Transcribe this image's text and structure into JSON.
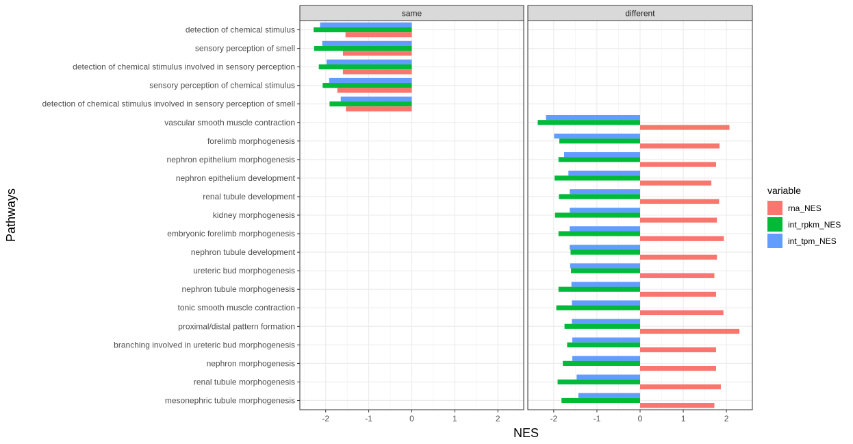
{
  "chart_data": {
    "type": "bar",
    "orientation": "horizontal",
    "xlabel": "NES",
    "ylabel": "Pathways",
    "xlim": [
      -2.6,
      2.6
    ],
    "x_ticks": [
      -2,
      -1,
      0,
      1,
      2
    ],
    "grid": true,
    "legend_title": "variable",
    "legend_position": "right",
    "series": [
      {
        "name": "rna_NES",
        "color": "#F8766D"
      },
      {
        "name": "int_rpkm_NES",
        "color": "#00BA38"
      },
      {
        "name": "int_tpm_NES",
        "color": "#619CFF"
      }
    ],
    "categories": [
      "detection of chemical stimulus",
      "sensory perception of smell",
      "detection of chemical stimulus involved in sensory perception",
      "sensory perception of chemical stimulus",
      "detection of chemical stimulus involved in sensory perception of smell",
      "vascular smooth muscle contraction",
      "forelimb morphogenesis",
      "nephron epithelium morphogenesis",
      "nephron epithelium development",
      "renal tubule development",
      "kidney morphogenesis",
      "embryonic forelimb morphogenesis",
      "nephron tubule development",
      "ureteric bud morphogenesis",
      "nephron tubule morphogenesis",
      "tonic smooth muscle contraction",
      "proximal/distal pattern formation",
      "branching involved in ureteric bud morphogenesis",
      "nephron morphogenesis",
      "renal tubule morphogenesis",
      "mesonephric tubule morphogenesis"
    ],
    "panels": [
      {
        "label": "same",
        "bars": [
          {
            "category": 0,
            "rna_NES": -1.54,
            "int_rpkm_NES": -2.28,
            "int_tpm_NES": -2.13
          },
          {
            "category": 1,
            "rna_NES": -1.6,
            "int_rpkm_NES": -2.27,
            "int_tpm_NES": -2.08
          },
          {
            "category": 2,
            "rna_NES": -1.6,
            "int_rpkm_NES": -2.16,
            "int_tpm_NES": -1.98
          },
          {
            "category": 3,
            "rna_NES": -1.73,
            "int_rpkm_NES": -2.07,
            "int_tpm_NES": -1.92
          },
          {
            "category": 4,
            "rna_NES": -1.53,
            "int_rpkm_NES": -1.91,
            "int_tpm_NES": -1.65
          }
        ]
      },
      {
        "label": "different",
        "bars": [
          {
            "category": 5,
            "rna_NES": 2.07,
            "int_rpkm_NES": -2.37,
            "int_tpm_NES": -2.18
          },
          {
            "category": 6,
            "rna_NES": 1.84,
            "int_rpkm_NES": -1.87,
            "int_tpm_NES": -1.99
          },
          {
            "category": 7,
            "rna_NES": 1.76,
            "int_rpkm_NES": -1.89,
            "int_tpm_NES": -1.76
          },
          {
            "category": 8,
            "rna_NES": 1.65,
            "int_rpkm_NES": -1.98,
            "int_tpm_NES": -1.66
          },
          {
            "category": 9,
            "rna_NES": 1.83,
            "int_rpkm_NES": -1.88,
            "int_tpm_NES": -1.63
          },
          {
            "category": 10,
            "rna_NES": 1.78,
            "int_rpkm_NES": -1.97,
            "int_tpm_NES": -1.63
          },
          {
            "category": 11,
            "rna_NES": 1.94,
            "int_rpkm_NES": -1.89,
            "int_tpm_NES": -1.63
          },
          {
            "category": 12,
            "rna_NES": 1.78,
            "int_rpkm_NES": -1.61,
            "int_tpm_NES": -1.63
          },
          {
            "category": 13,
            "rna_NES": 1.72,
            "int_rpkm_NES": -1.6,
            "int_tpm_NES": -1.62
          },
          {
            "category": 14,
            "rna_NES": 1.76,
            "int_rpkm_NES": -1.89,
            "int_tpm_NES": -1.59
          },
          {
            "category": 15,
            "rna_NES": 1.93,
            "int_rpkm_NES": -1.94,
            "int_tpm_NES": -1.58
          },
          {
            "category": 16,
            "rna_NES": 2.3,
            "int_rpkm_NES": -1.75,
            "int_tpm_NES": -1.58
          },
          {
            "category": 17,
            "rna_NES": 1.76,
            "int_rpkm_NES": -1.69,
            "int_tpm_NES": -1.57
          },
          {
            "category": 18,
            "rna_NES": 1.76,
            "int_rpkm_NES": -1.79,
            "int_tpm_NES": -1.57
          },
          {
            "category": 19,
            "rna_NES": 1.87,
            "int_rpkm_NES": -1.91,
            "int_tpm_NES": -1.47
          },
          {
            "category": 20,
            "rna_NES": 1.72,
            "int_rpkm_NES": -1.82,
            "int_tpm_NES": -1.43
          }
        ]
      }
    ]
  }
}
